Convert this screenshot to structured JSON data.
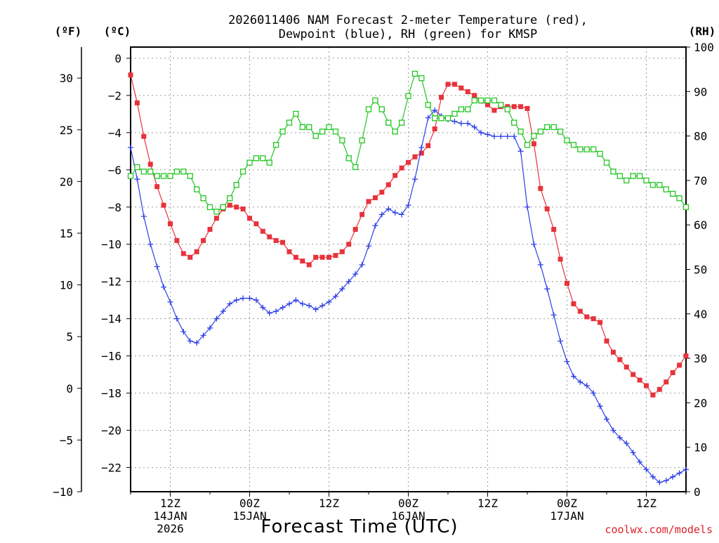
{
  "chart_data": {
    "type": "line",
    "title": [
      "2026011406 NAM Forecast 2-meter Temperature (red),",
      "Dewpoint (blue), RH (green) for KMSP"
    ],
    "xlabel": "Forecast Time (UTC)",
    "watermark": "coolwx.com/models",
    "units": {
      "fahrenheit": "(ºF)",
      "celsius": "(ºC)",
      "rh": "(RH)"
    },
    "x_range_hours": [
      6,
      90
    ],
    "x_ticks": [
      {
        "hour": 12,
        "lines": [
          "12Z",
          "14JAN",
          "2026"
        ]
      },
      {
        "hour": 24,
        "lines": [
          "00Z",
          "15JAN"
        ]
      },
      {
        "hour": 36,
        "lines": [
          "12Z"
        ]
      },
      {
        "hour": 48,
        "lines": [
          "00Z",
          "16JAN"
        ]
      },
      {
        "hour": 60,
        "lines": [
          "12Z"
        ]
      },
      {
        "hour": 72,
        "lines": [
          "00Z",
          "17JAN"
        ]
      },
      {
        "hour": 84,
        "lines": [
          "12Z"
        ]
      }
    ],
    "celsius_axis": {
      "range": [
        -23.3,
        0.6
      ],
      "ticks": [
        "0",
        "−2",
        "−4",
        "−6",
        "−8",
        "−10",
        "−12",
        "−14",
        "−16",
        "−18",
        "−20",
        "−22"
      ]
    },
    "fahrenheit_axis": {
      "range": [
        -10,
        33
      ],
      "ticks": [
        "30",
        "25",
        "20",
        "15",
        "10",
        "5",
        "0",
        "−5",
        "−10"
      ]
    },
    "rh_axis": {
      "range": [
        0,
        100
      ],
      "ticks": [
        "100",
        "90",
        "80",
        "70",
        "60",
        "50",
        "40",
        "30",
        "20",
        "10",
        "0"
      ]
    },
    "grid": true,
    "series": [
      {
        "name": "Temperature",
        "color": "#e8323c",
        "marker": "filled-square",
        "axis": "celsius",
        "x": [
          6,
          7,
          8,
          9,
          10,
          11,
          12,
          13,
          14,
          15,
          16,
          17,
          18,
          19,
          20,
          21,
          22,
          23,
          24,
          25,
          26,
          27,
          28,
          29,
          30,
          31,
          32,
          33,
          34,
          35,
          36,
          37,
          38,
          39,
          40,
          41,
          42,
          43,
          44,
          45,
          46,
          47,
          48,
          49,
          50,
          51,
          52,
          53,
          54,
          55,
          56,
          57,
          58,
          59,
          60,
          61,
          62,
          63,
          64,
          65,
          66,
          67,
          68,
          69,
          70,
          71,
          72,
          73,
          74,
          75,
          76,
          77,
          78,
          79,
          80,
          81,
          82,
          83,
          84,
          85,
          86,
          87,
          88,
          89,
          90
        ],
        "values": [
          -0.9,
          -2.4,
          -4.2,
          -5.7,
          -6.9,
          -7.9,
          -8.9,
          -9.8,
          -10.5,
          -10.7,
          -10.4,
          -9.8,
          -9.2,
          -8.6,
          -8.1,
          -7.9,
          -8.0,
          -8.1,
          -8.6,
          -8.9,
          -9.3,
          -9.6,
          -9.8,
          -9.9,
          -10.4,
          -10.7,
          -10.9,
          -11.1,
          -10.7,
          -10.7,
          -10.7,
          -10.6,
          -10.4,
          -10.0,
          -9.2,
          -8.4,
          -7.7,
          -7.5,
          -7.2,
          -6.8,
          -6.3,
          -5.9,
          -5.6,
          -5.3,
          -5.1,
          -4.7,
          -3.8,
          -2.1,
          -1.4,
          -1.4,
          -1.6,
          -1.8,
          -2.0,
          -2.3,
          -2.5,
          -2.8,
          -2.6,
          -2.6,
          -2.6,
          -2.6,
          -2.7,
          -4.6,
          -7.0,
          -8.1,
          -9.2,
          -10.8,
          -12.1,
          -13.2,
          -13.6,
          -13.9,
          -14.0,
          -14.2,
          -15.2,
          -15.8,
          -16.2,
          -16.6,
          -17.0,
          -17.3,
          -17.6,
          -18.1,
          -17.8,
          -17.4,
          -16.9,
          -16.5,
          -16.0
        ]
      },
      {
        "name": "Dewpoint",
        "color": "#2d3fe6",
        "marker": "plus",
        "axis": "celsius",
        "x": [
          6,
          7,
          8,
          9,
          10,
          11,
          12,
          13,
          14,
          15,
          16,
          17,
          18,
          19,
          20,
          21,
          22,
          23,
          24,
          25,
          26,
          27,
          28,
          29,
          30,
          31,
          32,
          33,
          34,
          35,
          36,
          37,
          38,
          39,
          40,
          41,
          42,
          43,
          44,
          45,
          46,
          47,
          48,
          49,
          50,
          51,
          52,
          53,
          54,
          55,
          56,
          57,
          58,
          59,
          60,
          61,
          62,
          63,
          64,
          65,
          66,
          67,
          68,
          69,
          70,
          71,
          72,
          73,
          74,
          75,
          76,
          77,
          78,
          79,
          80,
          81,
          82,
          83,
          84,
          85,
          86,
          87,
          88,
          89,
          90
        ],
        "values": [
          -4.8,
          -6.5,
          -8.5,
          -10.0,
          -11.2,
          -12.3,
          -13.1,
          -14.0,
          -14.7,
          -15.2,
          -15.3,
          -14.9,
          -14.5,
          -14.0,
          -13.6,
          -13.2,
          -13.0,
          -12.9,
          -12.9,
          -13.0,
          -13.4,
          -13.7,
          -13.6,
          -13.4,
          -13.2,
          -13.0,
          -13.2,
          -13.3,
          -13.5,
          -13.3,
          -13.1,
          -12.8,
          -12.4,
          -12.0,
          -11.6,
          -11.1,
          -10.1,
          -9.0,
          -8.4,
          -8.1,
          -8.3,
          -8.4,
          -7.9,
          -6.5,
          -4.8,
          -3.2,
          -2.8,
          -3.1,
          -3.3,
          -3.4,
          -3.5,
          -3.5,
          -3.7,
          -4.0,
          -4.1,
          -4.2,
          -4.2,
          -4.2,
          -4.2,
          -5.0,
          -8.0,
          -10.0,
          -11.1,
          -12.4,
          -13.8,
          -15.2,
          -16.3,
          -17.1,
          -17.4,
          -17.6,
          -18.0,
          -18.7,
          -19.4,
          -20.0,
          -20.4,
          -20.7,
          -21.2,
          -21.7,
          -22.1,
          -22.5,
          -22.8,
          -22.7,
          -22.5,
          -22.3,
          -22.1
        ]
      },
      {
        "name": "RH",
        "color": "#22c622",
        "marker": "open-square",
        "axis": "rh",
        "x": [
          6,
          7,
          8,
          9,
          10,
          11,
          12,
          13,
          14,
          15,
          16,
          17,
          18,
          19,
          20,
          21,
          22,
          23,
          24,
          25,
          26,
          27,
          28,
          29,
          30,
          31,
          32,
          33,
          34,
          35,
          36,
          37,
          38,
          39,
          40,
          41,
          42,
          43,
          44,
          45,
          46,
          47,
          48,
          49,
          50,
          51,
          52,
          53,
          54,
          55,
          56,
          57,
          58,
          59,
          60,
          61,
          62,
          63,
          64,
          65,
          66,
          67,
          68,
          69,
          70,
          71,
          72,
          73,
          74,
          75,
          76,
          77,
          78,
          79,
          80,
          81,
          82,
          83,
          84,
          85,
          86,
          87,
          88,
          89,
          90
        ],
        "values": [
          71,
          73,
          72,
          72,
          71,
          71,
          71,
          72,
          72,
          71,
          68,
          66,
          64,
          63,
          64,
          66,
          69,
          72,
          74,
          75,
          75,
          74,
          78,
          81,
          83,
          85,
          82,
          82,
          80,
          81,
          82,
          81,
          79,
          75,
          73,
          79,
          86,
          88,
          86,
          83,
          81,
          83,
          89,
          94,
          93,
          87,
          84,
          84,
          84,
          85,
          86,
          86,
          88,
          88,
          88,
          88,
          87,
          86,
          83,
          81,
          78,
          80,
          81,
          82,
          82,
          81,
          79,
          78,
          77,
          77,
          77,
          76,
          74,
          72,
          71,
          70,
          71,
          71,
          70,
          69,
          69,
          68,
          67,
          66,
          64
        ]
      }
    ]
  }
}
